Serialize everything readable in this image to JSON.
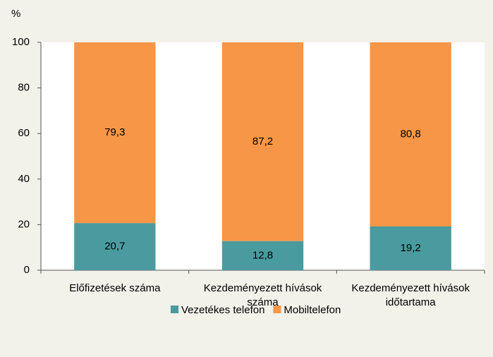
{
  "chart_data": {
    "type": "stacked_bar",
    "y_label": "%",
    "categories": [
      "Előfizetések száma",
      "Kezdeményezett hívások\nszáma",
      "Kezdeményezett hívások\nidőtartama"
    ],
    "series": [
      {
        "name": "Vezetékes telefon",
        "color": "#4a9b9f",
        "values": [
          20.7,
          12.8,
          19.2
        ],
        "value_labels": [
          "20,7",
          "12,8",
          "19,2"
        ]
      },
      {
        "name": "Mobiltelefon",
        "color": "#f79646",
        "values": [
          79.3,
          87.2,
          80.8
        ],
        "value_labels": [
          "79,3",
          "87,2",
          "80,8"
        ]
      }
    ],
    "ylim": [
      0,
      100
    ],
    "yticks": [
      0,
      20,
      40,
      60,
      80,
      100
    ],
    "grid": false,
    "legend": "bottom"
  }
}
